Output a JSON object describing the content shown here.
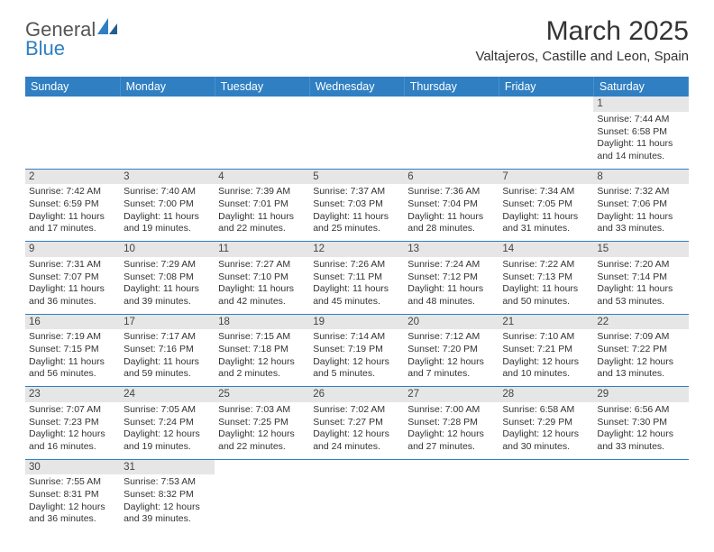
{
  "logo": {
    "word1": "General",
    "word2": "Blue"
  },
  "title": "March 2025",
  "subtitle": "Valtajeros, Castille and Leon, Spain",
  "calendar": {
    "header_bg": "#2f7fc2",
    "header_fg": "#ffffff",
    "daynum_bg": "#e6e6e6",
    "border_color": "#2f7fc2",
    "font_size_cell": 10.5,
    "font_size_header": 12.5,
    "font_size_title": 30,
    "font_size_subtitle": 15,
    "day_headers": [
      "Sunday",
      "Monday",
      "Tuesday",
      "Wednesday",
      "Thursday",
      "Friday",
      "Saturday"
    ],
    "weeks": [
      [
        null,
        null,
        null,
        null,
        null,
        null,
        {
          "n": "1",
          "sr": "Sunrise: 7:44 AM",
          "ss": "Sunset: 6:58 PM",
          "d1": "Daylight: 11 hours",
          "d2": "and 14 minutes."
        }
      ],
      [
        {
          "n": "2",
          "sr": "Sunrise: 7:42 AM",
          "ss": "Sunset: 6:59 PM",
          "d1": "Daylight: 11 hours",
          "d2": "and 17 minutes."
        },
        {
          "n": "3",
          "sr": "Sunrise: 7:40 AM",
          "ss": "Sunset: 7:00 PM",
          "d1": "Daylight: 11 hours",
          "d2": "and 19 minutes."
        },
        {
          "n": "4",
          "sr": "Sunrise: 7:39 AM",
          "ss": "Sunset: 7:01 PM",
          "d1": "Daylight: 11 hours",
          "d2": "and 22 minutes."
        },
        {
          "n": "5",
          "sr": "Sunrise: 7:37 AM",
          "ss": "Sunset: 7:03 PM",
          "d1": "Daylight: 11 hours",
          "d2": "and 25 minutes."
        },
        {
          "n": "6",
          "sr": "Sunrise: 7:36 AM",
          "ss": "Sunset: 7:04 PM",
          "d1": "Daylight: 11 hours",
          "d2": "and 28 minutes."
        },
        {
          "n": "7",
          "sr": "Sunrise: 7:34 AM",
          "ss": "Sunset: 7:05 PM",
          "d1": "Daylight: 11 hours",
          "d2": "and 31 minutes."
        },
        {
          "n": "8",
          "sr": "Sunrise: 7:32 AM",
          "ss": "Sunset: 7:06 PM",
          "d1": "Daylight: 11 hours",
          "d2": "and 33 minutes."
        }
      ],
      [
        {
          "n": "9",
          "sr": "Sunrise: 7:31 AM",
          "ss": "Sunset: 7:07 PM",
          "d1": "Daylight: 11 hours",
          "d2": "and 36 minutes."
        },
        {
          "n": "10",
          "sr": "Sunrise: 7:29 AM",
          "ss": "Sunset: 7:08 PM",
          "d1": "Daylight: 11 hours",
          "d2": "and 39 minutes."
        },
        {
          "n": "11",
          "sr": "Sunrise: 7:27 AM",
          "ss": "Sunset: 7:10 PM",
          "d1": "Daylight: 11 hours",
          "d2": "and 42 minutes."
        },
        {
          "n": "12",
          "sr": "Sunrise: 7:26 AM",
          "ss": "Sunset: 7:11 PM",
          "d1": "Daylight: 11 hours",
          "d2": "and 45 minutes."
        },
        {
          "n": "13",
          "sr": "Sunrise: 7:24 AM",
          "ss": "Sunset: 7:12 PM",
          "d1": "Daylight: 11 hours",
          "d2": "and 48 minutes."
        },
        {
          "n": "14",
          "sr": "Sunrise: 7:22 AM",
          "ss": "Sunset: 7:13 PM",
          "d1": "Daylight: 11 hours",
          "d2": "and 50 minutes."
        },
        {
          "n": "15",
          "sr": "Sunrise: 7:20 AM",
          "ss": "Sunset: 7:14 PM",
          "d1": "Daylight: 11 hours",
          "d2": "and 53 minutes."
        }
      ],
      [
        {
          "n": "16",
          "sr": "Sunrise: 7:19 AM",
          "ss": "Sunset: 7:15 PM",
          "d1": "Daylight: 11 hours",
          "d2": "and 56 minutes."
        },
        {
          "n": "17",
          "sr": "Sunrise: 7:17 AM",
          "ss": "Sunset: 7:16 PM",
          "d1": "Daylight: 11 hours",
          "d2": "and 59 minutes."
        },
        {
          "n": "18",
          "sr": "Sunrise: 7:15 AM",
          "ss": "Sunset: 7:18 PM",
          "d1": "Daylight: 12 hours",
          "d2": "and 2 minutes."
        },
        {
          "n": "19",
          "sr": "Sunrise: 7:14 AM",
          "ss": "Sunset: 7:19 PM",
          "d1": "Daylight: 12 hours",
          "d2": "and 5 minutes."
        },
        {
          "n": "20",
          "sr": "Sunrise: 7:12 AM",
          "ss": "Sunset: 7:20 PM",
          "d1": "Daylight: 12 hours",
          "d2": "and 7 minutes."
        },
        {
          "n": "21",
          "sr": "Sunrise: 7:10 AM",
          "ss": "Sunset: 7:21 PM",
          "d1": "Daylight: 12 hours",
          "d2": "and 10 minutes."
        },
        {
          "n": "22",
          "sr": "Sunrise: 7:09 AM",
          "ss": "Sunset: 7:22 PM",
          "d1": "Daylight: 12 hours",
          "d2": "and 13 minutes."
        }
      ],
      [
        {
          "n": "23",
          "sr": "Sunrise: 7:07 AM",
          "ss": "Sunset: 7:23 PM",
          "d1": "Daylight: 12 hours",
          "d2": "and 16 minutes."
        },
        {
          "n": "24",
          "sr": "Sunrise: 7:05 AM",
          "ss": "Sunset: 7:24 PM",
          "d1": "Daylight: 12 hours",
          "d2": "and 19 minutes."
        },
        {
          "n": "25",
          "sr": "Sunrise: 7:03 AM",
          "ss": "Sunset: 7:25 PM",
          "d1": "Daylight: 12 hours",
          "d2": "and 22 minutes."
        },
        {
          "n": "26",
          "sr": "Sunrise: 7:02 AM",
          "ss": "Sunset: 7:27 PM",
          "d1": "Daylight: 12 hours",
          "d2": "and 24 minutes."
        },
        {
          "n": "27",
          "sr": "Sunrise: 7:00 AM",
          "ss": "Sunset: 7:28 PM",
          "d1": "Daylight: 12 hours",
          "d2": "and 27 minutes."
        },
        {
          "n": "28",
          "sr": "Sunrise: 6:58 AM",
          "ss": "Sunset: 7:29 PM",
          "d1": "Daylight: 12 hours",
          "d2": "and 30 minutes."
        },
        {
          "n": "29",
          "sr": "Sunrise: 6:56 AM",
          "ss": "Sunset: 7:30 PM",
          "d1": "Daylight: 12 hours",
          "d2": "and 33 minutes."
        }
      ],
      [
        {
          "n": "30",
          "sr": "Sunrise: 7:55 AM",
          "ss": "Sunset: 8:31 PM",
          "d1": "Daylight: 12 hours",
          "d2": "and 36 minutes."
        },
        {
          "n": "31",
          "sr": "Sunrise: 7:53 AM",
          "ss": "Sunset: 8:32 PM",
          "d1": "Daylight: 12 hours",
          "d2": "and 39 minutes."
        },
        null,
        null,
        null,
        null,
        null
      ]
    ]
  }
}
